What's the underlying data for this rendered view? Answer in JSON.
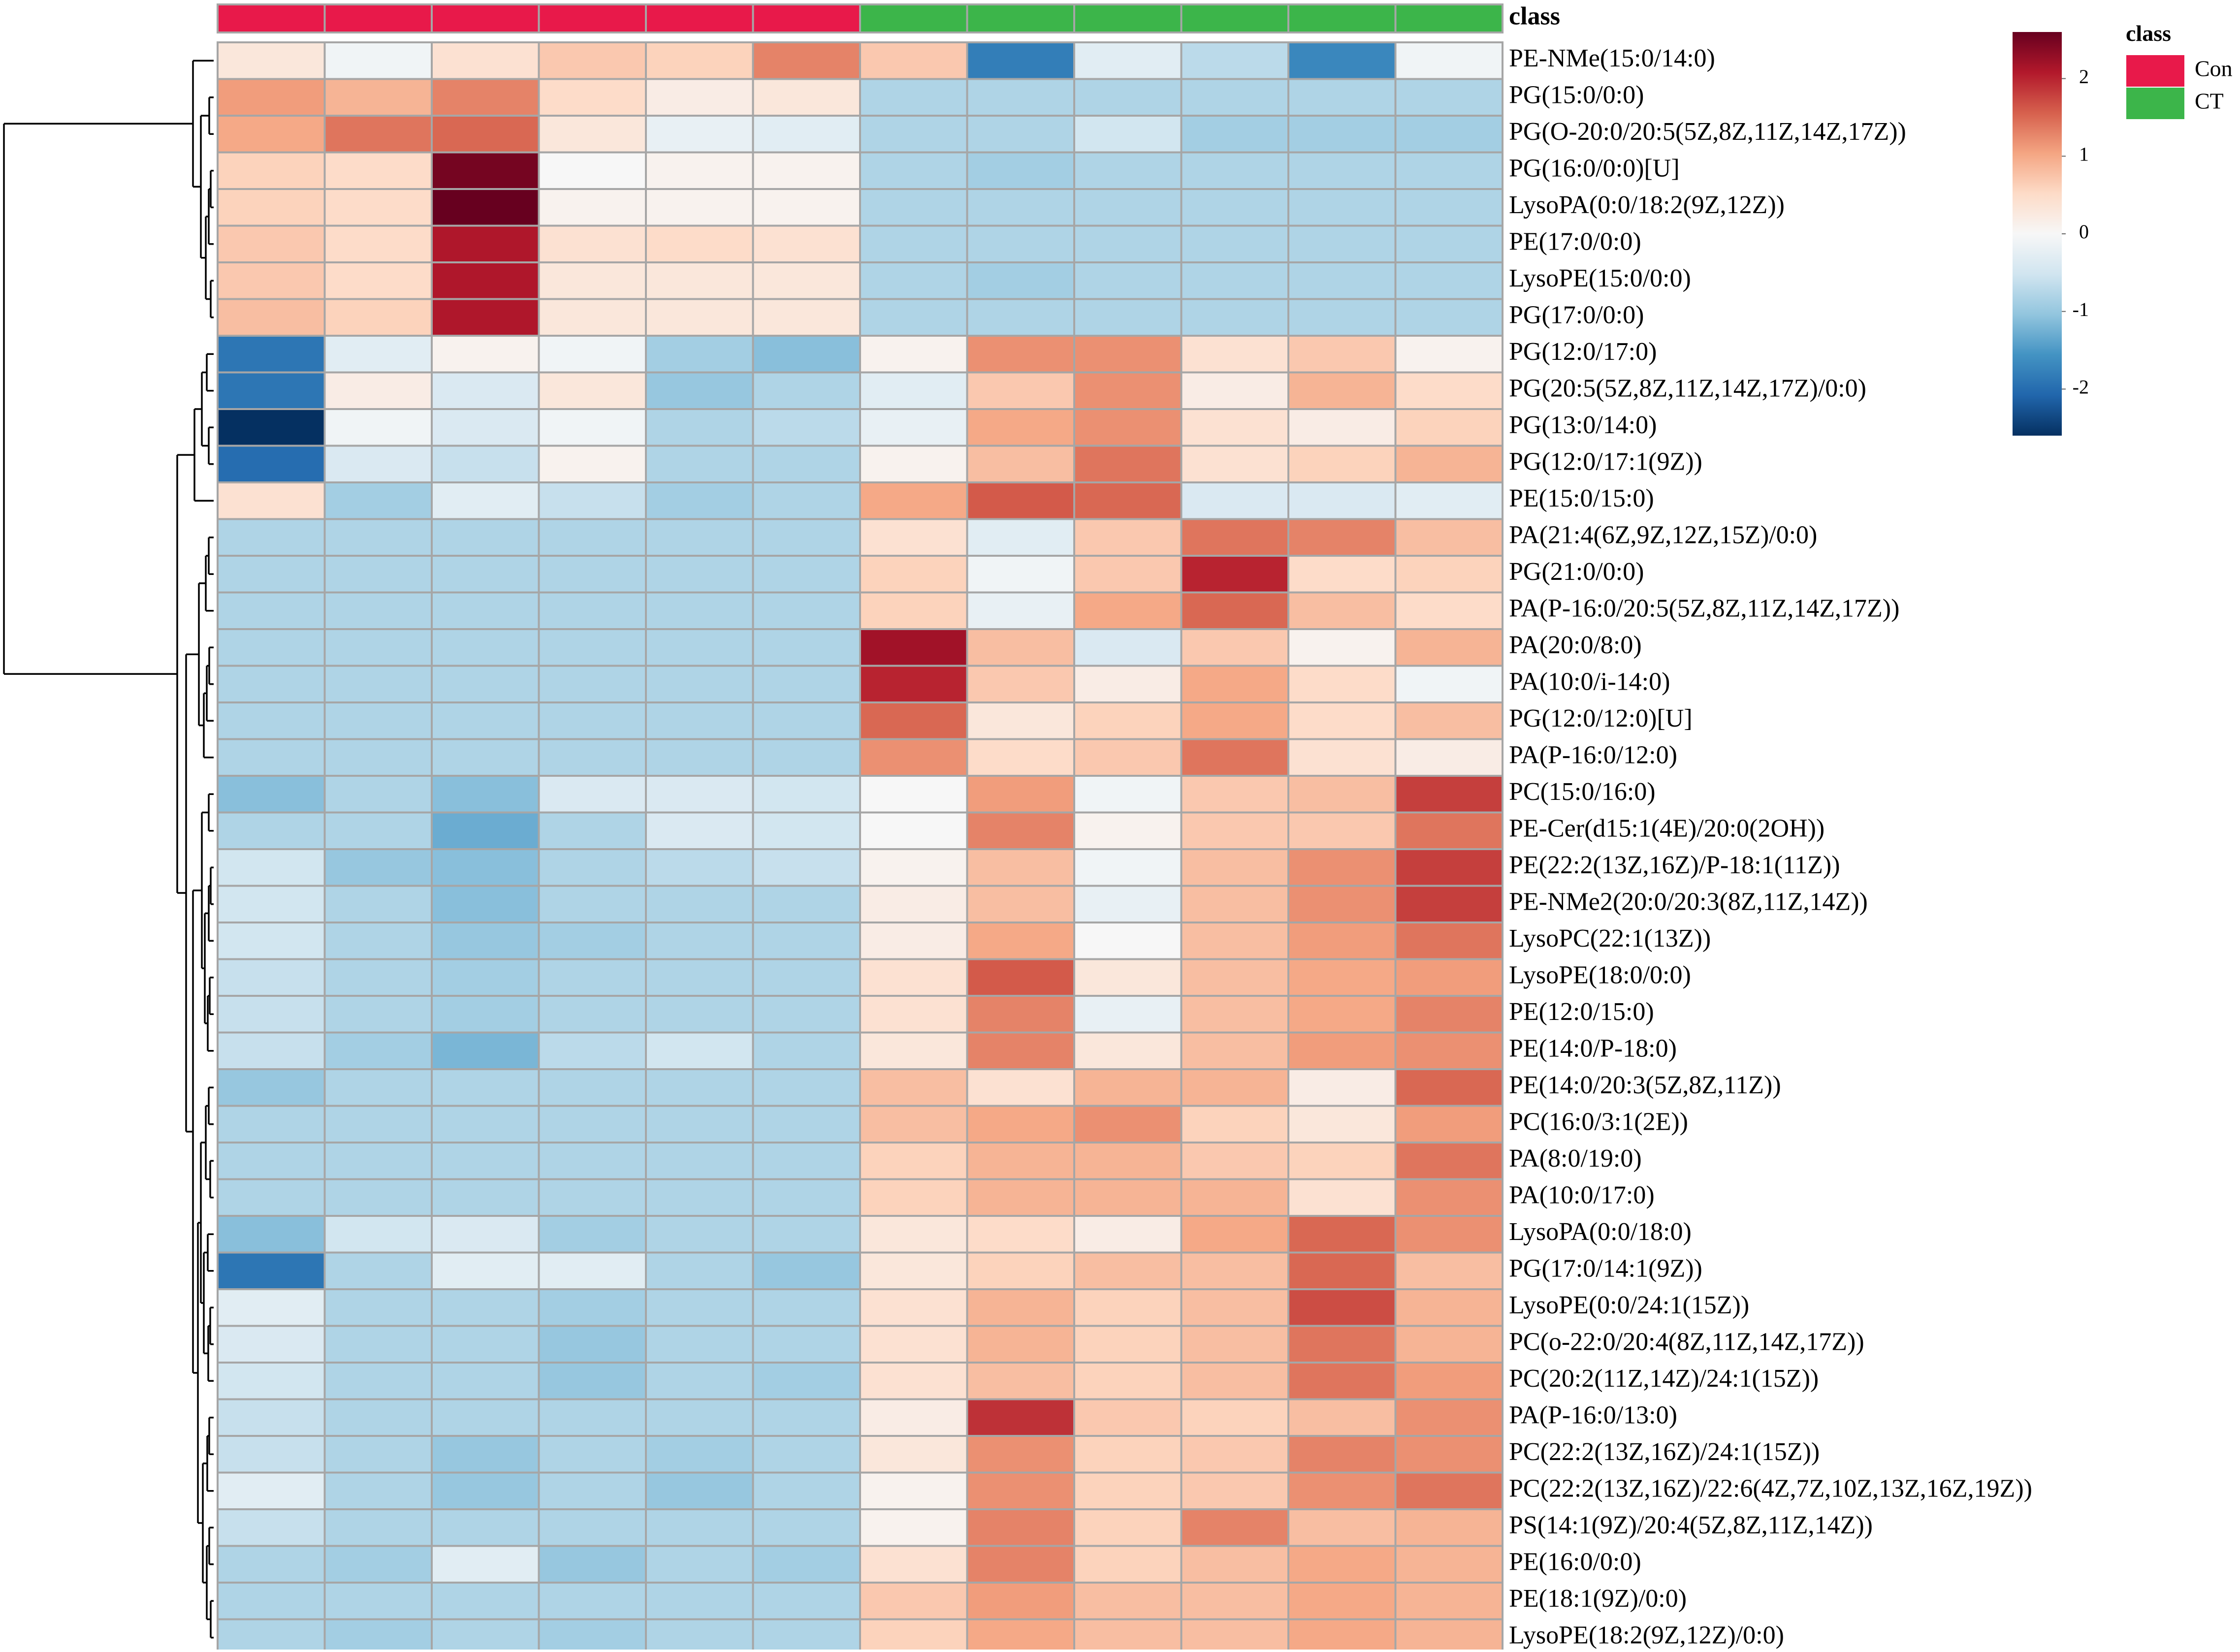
{
  "chart_data": {
    "type": "heatmap",
    "title": "",
    "annotation": {
      "label": "class",
      "groups": [
        {
          "name": "Con",
          "color": "#e8194a"
        },
        {
          "name": "CT",
          "color": "#3cb54a"
        }
      ],
      "column_groups": [
        "Con",
        "Con",
        "Con",
        "Con",
        "Con",
        "Con",
        "CT",
        "CT",
        "CT",
        "CT",
        "CT",
        "CT"
      ]
    },
    "colorbar": {
      "range": [
        -2.6,
        2.6
      ],
      "ticks": [
        2,
        1,
        0,
        -1,
        -2
      ],
      "colors": [
        "#053061",
        "#2166ac",
        "#4393c3",
        "#92c5de",
        "#d1e5f0",
        "#f7f7f7",
        "#fddbc7",
        "#f4a582",
        "#d6604d",
        "#b2182b",
        "#67001f"
      ]
    },
    "rows": [
      "PE-NMe(15:0/14:0)",
      "PG(15:0/0:0)",
      "PG(O-20:0/20:5(5Z,8Z,11Z,14Z,17Z))",
      "PG(16:0/0:0)[U]",
      "LysoPA(0:0/18:2(9Z,12Z))",
      "PE(17:0/0:0)",
      "LysoPE(15:0/0:0)",
      "PG(17:0/0:0)",
      "PG(12:0/17:0)",
      "PG(20:5(5Z,8Z,11Z,14Z,17Z)/0:0)",
      "PG(13:0/14:0)",
      "PG(12:0/17:1(9Z))",
      "PE(15:0/15:0)",
      "PA(21:4(6Z,9Z,12Z,15Z)/0:0)",
      "PG(21:0/0:0)",
      "PA(P-16:0/20:5(5Z,8Z,11Z,14Z,17Z))",
      "PA(20:0/8:0)",
      "PA(10:0/i-14:0)",
      "PG(12:0/12:0)[U]",
      "PA(P-16:0/12:0)",
      "PC(15:0/16:0)",
      "PE-Cer(d15:1(4E)/20:0(2OH))",
      "PE(22:2(13Z,16Z)/P-18:1(11Z))",
      "PE-NMe2(20:0/20:3(8Z,11Z,14Z))",
      "LysoPC(22:1(13Z))",
      "LysoPE(18:0/0:0)",
      "PE(12:0/15:0)",
      "PE(14:0/P-18:0)",
      "PE(14:0/20:3(5Z,8Z,11Z))",
      "PC(16:0/3:1(2E))",
      "PA(8:0/19:0)",
      "PA(10:0/17:0)",
      "LysoPA(0:0/18:0)",
      "PG(17:0/14:1(9Z))",
      "LysoPE(0:0/24:1(15Z))",
      "PC(o-22:0/20:4(8Z,11Z,14Z,17Z))",
      "PC(20:2(11Z,14Z)/24:1(15Z))",
      "PA(P-16:0/13:0)",
      "PC(22:2(13Z,16Z)/24:1(15Z))",
      "PC(22:2(13Z,16Z)/22:6(4Z,7Z,10Z,13Z,16Z,19Z))",
      "PS(14:1(9Z)/20:4(5Z,8Z,11Z,14Z))",
      "PE(16:0/0:0)",
      "PE(18:1(9Z)/0:0)",
      "LysoPE(18:2(9Z,12Z)/0:0)"
    ],
    "values": [
      [
        0.3,
        -0.1,
        0.4,
        0.7,
        0.6,
        1.3,
        0.7,
        -1.8,
        -0.3,
        -0.7,
        -1.7,
        -0.1
      ],
      [
        1.1,
        0.9,
        1.3,
        0.5,
        0.2,
        0.3,
        -0.8,
        -0.8,
        -0.8,
        -0.8,
        -0.8,
        -0.8
      ],
      [
        1.0,
        1.4,
        1.5,
        0.3,
        -0.2,
        -0.3,
        -0.8,
        -0.8,
        -0.5,
        -0.9,
        -0.9,
        -0.9
      ],
      [
        0.6,
        0.5,
        2.5,
        0.0,
        0.1,
        0.1,
        -0.8,
        -0.9,
        -0.8,
        -0.8,
        -0.8,
        -0.8
      ],
      [
        0.6,
        0.5,
        2.6,
        0.1,
        0.1,
        0.1,
        -0.8,
        -0.8,
        -0.8,
        -0.8,
        -0.8,
        -0.8
      ],
      [
        0.7,
        0.5,
        2.1,
        0.4,
        0.5,
        0.4,
        -0.8,
        -0.8,
        -0.8,
        -0.8,
        -0.8,
        -0.8
      ],
      [
        0.7,
        0.5,
        2.1,
        0.3,
        0.3,
        0.3,
        -0.8,
        -0.9,
        -0.8,
        -0.8,
        -0.8,
        -0.8
      ],
      [
        0.8,
        0.6,
        2.1,
        0.3,
        0.3,
        0.3,
        -0.8,
        -0.8,
        -0.8,
        -0.8,
        -0.8,
        -0.8
      ],
      [
        -1.9,
        -0.3,
        0.1,
        -0.1,
        -0.9,
        -1.1,
        0.1,
        1.2,
        1.2,
        0.4,
        0.7,
        0.1
      ],
      [
        -1.9,
        0.2,
        -0.4,
        0.3,
        -1.0,
        -0.8,
        -0.3,
        0.7,
        1.2,
        0.2,
        0.9,
        0.5
      ],
      [
        -2.6,
        -0.1,
        -0.4,
        -0.1,
        -0.8,
        -0.7,
        -0.2,
        1.0,
        1.2,
        0.4,
        0.2,
        0.6
      ],
      [
        -2.0,
        -0.4,
        -0.6,
        0.1,
        -0.8,
        -0.8,
        0.1,
        0.8,
        1.4,
        0.4,
        0.6,
        0.9
      ],
      [
        0.4,
        -0.9,
        -0.3,
        -0.6,
        -0.9,
        -0.8,
        1.0,
        1.6,
        1.5,
        -0.4,
        -0.4,
        -0.3
      ],
      [
        -0.8,
        -0.8,
        -0.8,
        -0.8,
        -0.8,
        -0.8,
        0.4,
        -0.3,
        0.7,
        1.4,
        1.3,
        0.8
      ],
      [
        -0.8,
        -0.8,
        -0.8,
        -0.8,
        -0.8,
        -0.8,
        0.6,
        -0.1,
        0.7,
        2.0,
        0.5,
        0.6
      ],
      [
        -0.8,
        -0.8,
        -0.8,
        -0.8,
        -0.8,
        -0.8,
        0.6,
        -0.2,
        1.0,
        1.5,
        0.8,
        0.5
      ],
      [
        -0.8,
        -0.8,
        -0.8,
        -0.8,
        -0.8,
        -0.8,
        2.2,
        0.8,
        -0.4,
        0.7,
        0.1,
        0.9
      ],
      [
        -0.8,
        -0.8,
        -0.8,
        -0.8,
        -0.8,
        -0.8,
        2.0,
        0.7,
        0.2,
        1.0,
        0.5,
        -0.1
      ],
      [
        -0.8,
        -0.8,
        -0.8,
        -0.8,
        -0.8,
        -0.8,
        1.5,
        0.3,
        0.6,
        1.0,
        0.5,
        0.8
      ],
      [
        -0.8,
        -0.8,
        -0.8,
        -0.8,
        -0.8,
        -0.8,
        1.2,
        0.5,
        0.7,
        1.4,
        0.4,
        0.2
      ],
      [
        -1.1,
        -0.8,
        -1.1,
        -0.4,
        -0.4,
        -0.5,
        0.0,
        1.1,
        -0.1,
        0.7,
        0.8,
        1.8
      ],
      [
        -0.8,
        -0.8,
        -1.3,
        -0.8,
        -0.4,
        -0.5,
        0.0,
        1.3,
        0.1,
        0.7,
        0.7,
        1.4
      ],
      [
        -0.5,
        -1.0,
        -1.1,
        -0.8,
        -0.7,
        -0.6,
        0.1,
        0.8,
        -0.1,
        0.8,
        1.2,
        1.8
      ],
      [
        -0.5,
        -0.8,
        -1.1,
        -0.8,
        -0.8,
        -0.8,
        0.2,
        0.8,
        -0.2,
        0.8,
        1.2,
        1.8
      ],
      [
        -0.5,
        -0.8,
        -1.0,
        -0.9,
        -0.8,
        -0.8,
        0.2,
        1.0,
        0.0,
        0.8,
        1.1,
        1.4
      ],
      [
        -0.6,
        -0.8,
        -0.9,
        -0.8,
        -0.8,
        -0.8,
        0.4,
        1.6,
        0.3,
        0.8,
        1.0,
        1.1
      ],
      [
        -0.6,
        -0.8,
        -0.9,
        -0.8,
        -0.8,
        -0.8,
        0.4,
        1.3,
        -0.2,
        0.8,
        1.0,
        1.3
      ],
      [
        -0.6,
        -0.9,
        -1.2,
        -0.7,
        -0.5,
        -0.8,
        0.3,
        1.3,
        0.3,
        0.8,
        1.1,
        1.2
      ],
      [
        -1.0,
        -0.8,
        -0.8,
        -0.8,
        -0.8,
        -0.8,
        0.8,
        0.4,
        0.9,
        0.9,
        0.2,
        1.5
      ],
      [
        -0.8,
        -0.8,
        -0.8,
        -0.8,
        -0.8,
        -0.8,
        0.8,
        1.0,
        1.2,
        0.6,
        0.3,
        1.1
      ],
      [
        -0.8,
        -0.8,
        -0.8,
        -0.8,
        -0.8,
        -0.8,
        0.6,
        0.9,
        0.9,
        0.7,
        0.6,
        1.4
      ],
      [
        -0.8,
        -0.8,
        -0.8,
        -0.8,
        -0.8,
        -0.8,
        0.6,
        0.9,
        0.9,
        0.9,
        0.4,
        1.2
      ],
      [
        -1.1,
        -0.5,
        -0.4,
        -0.9,
        -0.8,
        -0.8,
        0.3,
        0.5,
        0.2,
        1.0,
        1.5,
        1.2
      ],
      [
        -1.9,
        -0.8,
        -0.3,
        -0.3,
        -0.8,
        -1.0,
        0.3,
        0.6,
        0.8,
        0.8,
        1.5,
        0.8
      ],
      [
        -0.3,
        -0.8,
        -0.8,
        -0.9,
        -0.8,
        -0.8,
        0.4,
        0.9,
        0.6,
        0.8,
        1.7,
        0.9
      ],
      [
        -0.4,
        -0.8,
        -0.8,
        -1.0,
        -0.8,
        -0.8,
        0.4,
        0.9,
        0.6,
        0.8,
        1.4,
        0.9
      ],
      [
        -0.5,
        -0.8,
        -0.8,
        -1.0,
        -0.8,
        -0.9,
        0.4,
        0.8,
        0.6,
        0.8,
        1.4,
        1.1
      ],
      [
        -0.6,
        -0.8,
        -0.8,
        -0.8,
        -0.8,
        -0.8,
        0.2,
        1.9,
        0.7,
        0.6,
        0.8,
        1.2
      ],
      [
        -0.6,
        -0.8,
        -1.0,
        -0.8,
        -0.9,
        -0.8,
        0.3,
        1.2,
        0.6,
        0.7,
        1.3,
        1.2
      ],
      [
        -0.3,
        -0.8,
        -1.0,
        -0.8,
        -1.0,
        -0.8,
        0.1,
        1.2,
        0.6,
        0.7,
        1.2,
        1.4
      ],
      [
        -0.6,
        -0.8,
        -0.8,
        -0.8,
        -0.8,
        -0.8,
        0.1,
        1.3,
        0.6,
        1.3,
        0.8,
        0.9
      ],
      [
        -0.8,
        -0.9,
        -0.3,
        -1.0,
        -0.8,
        -0.9,
        0.4,
        1.3,
        0.6,
        0.8,
        1.0,
        0.9
      ],
      [
        -0.8,
        -0.8,
        -0.8,
        -0.8,
        -0.8,
        -0.8,
        0.7,
        1.1,
        0.8,
        0.8,
        1.0,
        0.9
      ],
      [
        -0.8,
        -0.9,
        -0.8,
        -0.9,
        -0.8,
        -0.8,
        0.6,
        1.0,
        0.8,
        0.8,
        1.0,
        0.9
      ]
    ]
  }
}
